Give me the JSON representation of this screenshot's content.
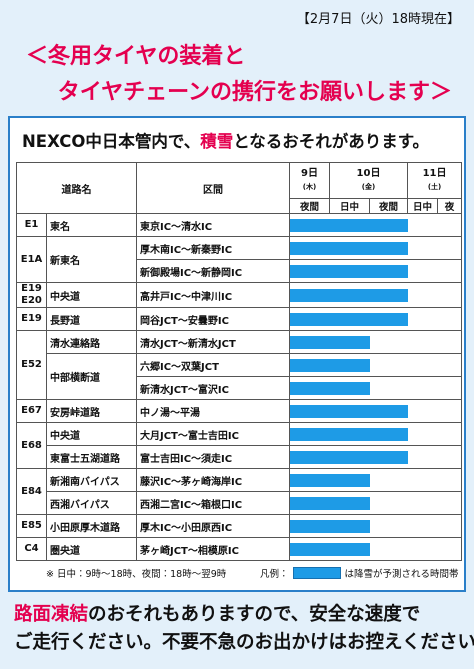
{
  "header": {
    "timestamp": "【2月7日（火）18時現在】",
    "title_lines": [
      "＜冬用タイヤの装着と",
      "タイヤチェーンの携行をお願いします＞"
    ]
  },
  "notice": {
    "pre": "NEXCO中日本管内で、",
    "highlight": "積雪",
    "post": "となるおそれがあります。"
  },
  "table": {
    "columns": {
      "road": "道路名",
      "section": "区間"
    },
    "days": [
      {
        "date": "9日",
        "weekday": "(木)",
        "slots": [
          "夜間"
        ]
      },
      {
        "date": "10日",
        "weekday": "(金)",
        "slots": [
          "日中",
          "夜間"
        ]
      },
      {
        "date": "11日",
        "weekday": "(土)",
        "slots": [
          "日中",
          "夜"
        ]
      }
    ],
    "rows": [
      {
        "code": "E1",
        "road": "東名",
        "section": "東京IC～清水IC",
        "snow": [
          true,
          true,
          true,
          false,
          false
        ]
      },
      {
        "code": "E1A",
        "road": "新東名",
        "section": "厚木南IC～新秦野IC",
        "snow": [
          true,
          true,
          true,
          false,
          false
        ]
      },
      {
        "section": "新御殿場IC～新静岡IC",
        "snow": [
          true,
          true,
          true,
          false,
          false
        ]
      },
      {
        "code": "E19\nE20",
        "road": "中央道",
        "section": "高井戸IC～中津川IC",
        "snow": [
          true,
          true,
          true,
          false,
          false
        ]
      },
      {
        "code": "E19",
        "road": "長野道",
        "section": "岡谷JCT～安曇野IC",
        "snow": [
          true,
          true,
          true,
          false,
          false
        ]
      },
      {
        "code": "E52",
        "road": "清水連絡路",
        "section": "清水JCT～新清水JCT",
        "snow": [
          true,
          true,
          false,
          false,
          false
        ]
      },
      {
        "road": "中部横断道",
        "section": "六郷IC～双葉JCT",
        "snow": [
          true,
          true,
          false,
          false,
          false
        ]
      },
      {
        "section": "新清水JCT～富沢IC",
        "snow": [
          true,
          true,
          false,
          false,
          false
        ]
      },
      {
        "code": "E67",
        "road": "安房峠道路",
        "section": "中ノ湯～平湯",
        "snow": [
          true,
          true,
          true,
          false,
          false
        ]
      },
      {
        "code": "E68",
        "road": "中央道",
        "section": "大月JCT～富士吉田IC",
        "snow": [
          true,
          true,
          true,
          false,
          false
        ]
      },
      {
        "road": "東富士五湖道路",
        "section": "富士吉田IC～須走IC",
        "snow": [
          true,
          true,
          true,
          false,
          false
        ]
      },
      {
        "code": "E84",
        "road": "新湘南バイパス",
        "section": "藤沢IC～茅ヶ崎海岸IC",
        "snow": [
          true,
          true,
          false,
          false,
          false
        ]
      },
      {
        "road": "西湘バイパス",
        "section": "西湘二宮IC～箱根口IC",
        "snow": [
          true,
          true,
          false,
          false,
          false
        ]
      },
      {
        "code": "E85",
        "road": "小田原厚木道路",
        "section": "厚木IC～小田原西IC",
        "snow": [
          true,
          true,
          false,
          false,
          false
        ]
      },
      {
        "code": "C4",
        "road": "圏央道",
        "section": "茅ヶ崎JCT～相模原IC",
        "snow": [
          true,
          true,
          false,
          false,
          false
        ]
      }
    ]
  },
  "footnote": "※ 日中：9時～18時、夜間：18時～翌9時",
  "legend": {
    "label": "凡例：",
    "text": "は降雪が予測される時間帯"
  },
  "footer": {
    "highlight": "路面凍結",
    "line1": "のおそれもありますので、安全な速度で",
    "line2": "ご走行ください。不要不急のお出かけはお控えください。"
  }
}
